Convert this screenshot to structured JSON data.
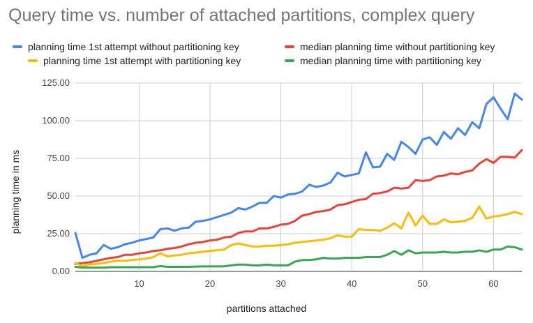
{
  "chart_data": {
    "type": "line",
    "title": "Query time vs. number of attached partitions, complex query",
    "xlabel": "partitions attached",
    "ylabel": "planning time in ms",
    "xlim": [
      1,
      64
    ],
    "ylim": [
      0,
      125
    ],
    "x_ticks": [
      10,
      20,
      30,
      40,
      50,
      60
    ],
    "y_ticks": [
      "0.00",
      "25.00",
      "50.00",
      "75.00",
      "100.00",
      "125.00"
    ],
    "grid": true,
    "legend_position": "top",
    "x": [
      1,
      2,
      3,
      4,
      5,
      6,
      7,
      8,
      9,
      10,
      11,
      12,
      13,
      14,
      15,
      16,
      17,
      18,
      19,
      20,
      21,
      22,
      23,
      24,
      25,
      26,
      27,
      28,
      29,
      30,
      31,
      32,
      33,
      34,
      35,
      36,
      37,
      38,
      39,
      40,
      41,
      42,
      43,
      44,
      45,
      46,
      47,
      48,
      49,
      50,
      51,
      52,
      53,
      54,
      55,
      56,
      57,
      58,
      59,
      60,
      61,
      62,
      63,
      64
    ],
    "series": [
      {
        "name": "planning time 1st attempt without partitioning key",
        "color": "#4285F4",
        "values": [
          25.5,
          9,
          11,
          12,
          17.5,
          15,
          16,
          18,
          19,
          20.5,
          21.5,
          22.5,
          28,
          28.5,
          27,
          28.5,
          29,
          33,
          33.5,
          34.5,
          36,
          37.5,
          39,
          42,
          41,
          43,
          45.5,
          45.5,
          50,
          49,
          51,
          51.5,
          53,
          57.5,
          56,
          57,
          59,
          65.5,
          63,
          64,
          65,
          79,
          69,
          69.5,
          78,
          74,
          86,
          82.5,
          78,
          87.5,
          89,
          84,
          92.5,
          88,
          95,
          90.5,
          99,
          95,
          111,
          115.5,
          108,
          101,
          118,
          114
        ]
      },
      {
        "name": "median planning time without partitioning key",
        "color": "#EA4335",
        "values": [
          5,
          5.5,
          6,
          7,
          8,
          9,
          9.5,
          11,
          11,
          12,
          12.5,
          13.5,
          14,
          15,
          15.5,
          16.5,
          18,
          19,
          19.5,
          20.5,
          21,
          22.5,
          23,
          25.5,
          26.5,
          26.5,
          28.5,
          28.5,
          29.5,
          31,
          31.5,
          33.5,
          37,
          38,
          39.5,
          40,
          41,
          44,
          44.5,
          46,
          47.5,
          48,
          51.5,
          52,
          53,
          55.5,
          55,
          55.5,
          60.5,
          60,
          60.5,
          63,
          63.5,
          65,
          64.5,
          66,
          67,
          71.5,
          74.5,
          72,
          76,
          76,
          75.5,
          80.5
        ]
      },
      {
        "name": "planning time 1st attempt with partitioning key",
        "color": "#FBBC04",
        "values": [
          5.5,
          3.5,
          4.5,
          5,
          5.5,
          6.5,
          7,
          7,
          7.5,
          8,
          8.5,
          9.5,
          12,
          10,
          10.5,
          11,
          12,
          12.5,
          13,
          13.5,
          14,
          14.5,
          17.5,
          18.5,
          17.5,
          16.5,
          16.5,
          17,
          17,
          17.5,
          18,
          19,
          19.5,
          20,
          20.5,
          21,
          22,
          24,
          23,
          23,
          28,
          27.5,
          27.5,
          27,
          29,
          32,
          28.5,
          39,
          30.5,
          37,
          31.5,
          31.5,
          34.5,
          32.5,
          33,
          33.5,
          35.5,
          43,
          35,
          36.5,
          37,
          38,
          39.5,
          38
        ]
      },
      {
        "name": "median planning time with partitioning key",
        "color": "#34A853",
        "values": [
          3,
          2.5,
          2.5,
          2.5,
          2.5,
          2.8,
          2.8,
          2.8,
          2.8,
          2.8,
          2.8,
          2.8,
          3.5,
          3,
          3,
          3,
          3,
          3.2,
          3.3,
          3.3,
          3.3,
          3.4,
          4,
          4.5,
          4.5,
          4,
          4,
          4.5,
          4,
          4,
          4,
          6.5,
          7.5,
          7.5,
          8,
          9,
          8.5,
          8.5,
          9,
          9,
          9,
          9.5,
          9.5,
          9.5,
          11,
          13.5,
          11,
          14,
          12,
          12.5,
          12.5,
          12.5,
          13,
          12.5,
          12.5,
          13,
          13,
          14,
          13,
          14.5,
          14.5,
          16.5,
          16,
          14.5
        ]
      }
    ]
  }
}
